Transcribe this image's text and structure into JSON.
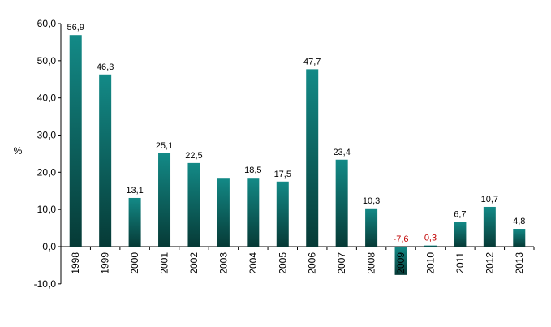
{
  "chart_data": {
    "type": "bar",
    "categories": [
      "1998",
      "1999",
      "2000",
      "2001",
      "2002",
      "2003",
      "2004",
      "2005",
      "2006",
      "2007",
      "2008",
      "2009",
      "2010",
      "2011",
      "2012",
      "2013"
    ],
    "values": [
      56.9,
      46.3,
      13.1,
      25.1,
      22.5,
      18.5,
      18.5,
      17.5,
      47.7,
      23.4,
      10.3,
      -7.6,
      0.3,
      6.7,
      10.7,
      4.8
    ],
    "data_labels": [
      "56,9",
      "46,3",
      "13,1",
      "25,1",
      "22,5",
      "",
      "18,5",
      "17,5",
      "47,7",
      "23,4",
      "10,3",
      "-7,6",
      "0,3",
      "6,7",
      "10,7",
      "4,8"
    ],
    "highlight_labels": [
      "2009",
      "2010"
    ],
    "ytick_labels": [
      "-10,0",
      "0,0",
      "10,0",
      "20,0",
      "30,0",
      "40,0",
      "50,0",
      "60,0"
    ],
    "yticks": [
      -10,
      0,
      10,
      20,
      30,
      40,
      50,
      60
    ],
    "ylim": [
      -10,
      60
    ],
    "ylabel": "%",
    "title": "",
    "xlabel": "",
    "grid": false,
    "colors": {
      "bar_top": "#138a87",
      "bar_bottom": "#063a36",
      "label_negative": "#c00000",
      "axis": "#000000"
    }
  }
}
